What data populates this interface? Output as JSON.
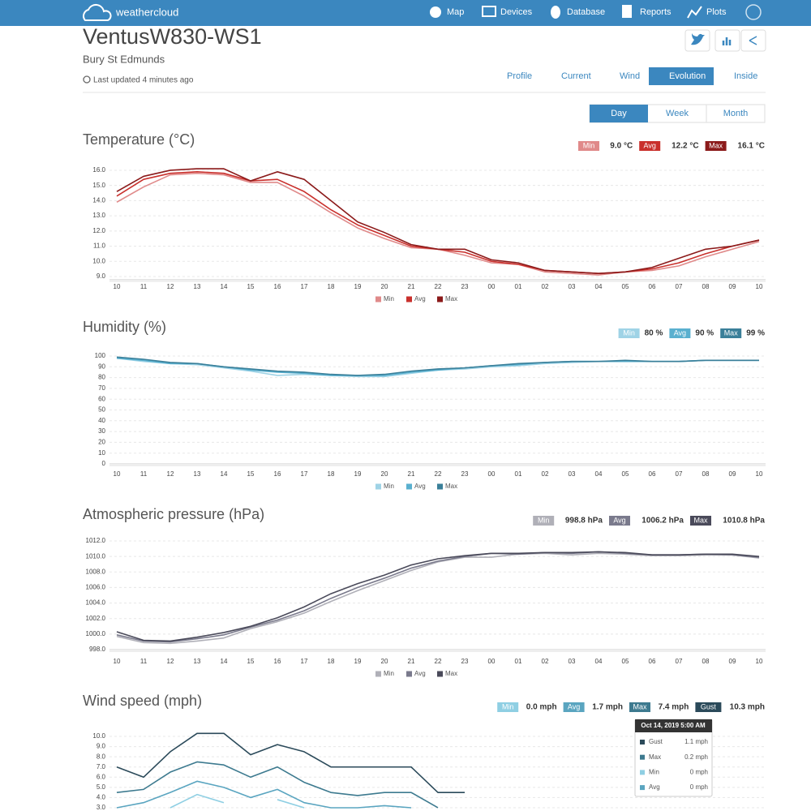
{
  "nav": {
    "brand": "weathercloud",
    "items": [
      "Map",
      "Devices",
      "Database",
      "Reports",
      "Plots"
    ]
  },
  "header": {
    "title": "VentusW830-WS1",
    "location": "Bury St Edmunds",
    "updated": "Last updated 4 minutes ago"
  },
  "tabs": [
    "Profile",
    "Current",
    "Wind",
    "Evolution",
    "Inside"
  ],
  "periods": [
    "Day",
    "Week",
    "Month"
  ],
  "chart_data": [
    {
      "type": "line",
      "title": "Temperature (°C)",
      "legend": true,
      "categories": [
        "10",
        "11",
        "12",
        "13",
        "14",
        "15",
        "16",
        "17",
        "18",
        "19",
        "20",
        "21",
        "22",
        "23",
        "00",
        "01",
        "02",
        "03",
        "04",
        "05",
        "06",
        "07",
        "08",
        "09",
        "10"
      ],
      "series": [
        {
          "name": "Min",
          "color": "#e08a8a",
          "summary": "9.0 °C",
          "values": [
            13.9,
            14.9,
            15.7,
            15.8,
            15.7,
            15.2,
            15.2,
            14.3,
            13.2,
            12.2,
            11.5,
            10.9,
            10.8,
            10.4,
            9.9,
            9.8,
            9.3,
            9.2,
            9.1,
            9.3,
            9.4,
            9.7,
            10.3,
            10.8,
            11.3
          ]
        },
        {
          "name": "Avg",
          "color": "#c9302c",
          "summary": "12.2 °C",
          "values": [
            14.3,
            15.4,
            15.8,
            15.9,
            15.8,
            15.3,
            15.4,
            14.6,
            13.4,
            12.4,
            11.7,
            11.0,
            10.8,
            10.6,
            10.0,
            9.8,
            9.4,
            9.3,
            9.2,
            9.3,
            9.5,
            9.9,
            10.5,
            11.0,
            11.4
          ]
        },
        {
          "name": "Max",
          "color": "#8b1a1a",
          "summary": "16.1 °C",
          "values": [
            14.6,
            15.6,
            16.0,
            16.1,
            16.1,
            15.3,
            15.9,
            15.4,
            14.0,
            12.6,
            11.9,
            11.1,
            10.8,
            10.8,
            10.1,
            9.9,
            9.4,
            9.3,
            9.2,
            9.3,
            9.6,
            10.2,
            10.8,
            11.0,
            11.4
          ]
        }
      ],
      "ylim": [
        8.8,
        16.5
      ],
      "yticks": [
        {
          "value": 9,
          "label": "9.0"
        },
        {
          "value": 10,
          "label": "10.0"
        },
        {
          "value": 11,
          "label": "11.0"
        },
        {
          "value": 12,
          "label": "12.0"
        },
        {
          "value": 13,
          "label": "13.0"
        },
        {
          "value": 14,
          "label": "14.0"
        },
        {
          "value": 15,
          "label": "15.0"
        },
        {
          "value": 16,
          "label": "16.0"
        }
      ]
    },
    {
      "type": "line",
      "title": "Humidity (%)",
      "legend": true,
      "categories": [
        "10",
        "11",
        "12",
        "13",
        "14",
        "15",
        "16",
        "17",
        "18",
        "19",
        "20",
        "21",
        "22",
        "23",
        "00",
        "01",
        "02",
        "03",
        "04",
        "05",
        "06",
        "07",
        "08",
        "09",
        "10"
      ],
      "series": [
        {
          "name": "Min",
          "color": "#9fd3e6",
          "summary": "80 %",
          "values": [
            98,
            95,
            93,
            92,
            89,
            86,
            82,
            83,
            82,
            81,
            81,
            84,
            87,
            88,
            90,
            91,
            93,
            94,
            95,
            95,
            95,
            95,
            96,
            96,
            96
          ]
        },
        {
          "name": "Avg",
          "color": "#5ab0cf",
          "summary": "90 %",
          "values": [
            98,
            96,
            93,
            93,
            90,
            87,
            85,
            84,
            82,
            82,
            82,
            85,
            87,
            89,
            91,
            92,
            94,
            95,
            95,
            95,
            95,
            95,
            96,
            96,
            96
          ]
        },
        {
          "name": "Max",
          "color": "#3a7f99",
          "summary": "99 %",
          "values": [
            99,
            97,
            94,
            93,
            90,
            88,
            86,
            85,
            83,
            82,
            83,
            86,
            88,
            89,
            91,
            93,
            94,
            95,
            95,
            96,
            95,
            95,
            96,
            96,
            96
          ]
        }
      ],
      "ylim": [
        0,
        100
      ],
      "yticks": [
        0,
        10,
        20,
        30,
        40,
        50,
        60,
        70,
        80,
        90,
        100
      ]
    },
    {
      "type": "line",
      "title": "Atmospheric pressure (hPa)",
      "legend": true,
      "categories": [
        "10",
        "11",
        "12",
        "13",
        "14",
        "15",
        "16",
        "17",
        "18",
        "19",
        "20",
        "21",
        "22",
        "23",
        "00",
        "01",
        "02",
        "03",
        "04",
        "05",
        "06",
        "07",
        "08",
        "09",
        "10"
      ],
      "series": [
        {
          "name": "Min",
          "color": "#b0b0b8",
          "summary": "998.8 hPa",
          "values": [
            999.7,
            998.9,
            998.8,
            999.1,
            999.5,
            1000.7,
            1001.6,
            1002.7,
            1004.2,
            1005.6,
            1006.9,
            1008.2,
            1009.3,
            1009.9,
            1009.9,
            1010.3,
            1010.4,
            1010.2,
            1010.4,
            1010.3,
            1010.1,
            1010.1,
            1010.2,
            1010.2,
            1009.8
          ]
        },
        {
          "name": "Avg",
          "color": "#7a7a8c",
          "summary": "1006.2 hPa",
          "values": [
            999.9,
            999.1,
            999.0,
            999.4,
            999.9,
            1000.9,
            1001.8,
            1003.0,
            1004.6,
            1006.0,
            1007.2,
            1008.5,
            1009.4,
            1010.0,
            1010.4,
            1010.3,
            1010.5,
            1010.4,
            1010.6,
            1010.4,
            1010.2,
            1010.2,
            1010.3,
            1010.2,
            1009.9
          ]
        },
        {
          "name": "Max",
          "color": "#4a4a5a",
          "summary": "1010.8 hPa",
          "values": [
            1000.3,
            999.2,
            999.1,
            999.6,
            1000.2,
            1001.0,
            1002.1,
            1003.5,
            1005.2,
            1006.5,
            1007.6,
            1008.9,
            1009.7,
            1010.1,
            1010.4,
            1010.4,
            1010.5,
            1010.5,
            1010.6,
            1010.5,
            1010.2,
            1010.2,
            1010.3,
            1010.3,
            1010.0
          ]
        }
      ],
      "ylim": [
        998,
        1012
      ],
      "yticks": [
        {
          "value": 998,
          "label": "998.0"
        },
        {
          "value": 1000,
          "label": "1000.0"
        },
        {
          "value": 1002,
          "label": "1002.0"
        },
        {
          "value": 1004,
          "label": "1004.0"
        },
        {
          "value": 1006,
          "label": "1006.0"
        },
        {
          "value": 1008,
          "label": "1008.0"
        },
        {
          "value": 1010,
          "label": "1010.0"
        },
        {
          "value": 1012,
          "label": "1012.0"
        }
      ]
    },
    {
      "type": "line",
      "title": "Wind speed (mph)",
      "legend": false,
      "series": [
        {
          "name": "Min",
          "color": "#8fcfe3",
          "summary": "0.0 mph",
          "values": [
            null,
            null,
            3.0,
            4.3,
            3.5,
            null,
            3.8,
            3.0,
            null,
            null,
            null,
            null,
            null,
            null,
            null,
            null,
            null,
            null,
            null,
            null,
            null,
            null,
            null,
            null,
            null
          ]
        },
        {
          "name": "Avg",
          "color": "#5aa5c0",
          "summary": "1.7 mph",
          "values": [
            3.0,
            3.5,
            4.5,
            5.6,
            5.0,
            4.0,
            4.8,
            3.5,
            3.0,
            3.0,
            3.2,
            3.0,
            null,
            null,
            null,
            null,
            null,
            null,
            null,
            null,
            null,
            null,
            null,
            null,
            null
          ]
        },
        {
          "name": "Max",
          "color": "#3d7a8f",
          "summary": "7.4 mph",
          "values": [
            4.5,
            4.8,
            6.5,
            7.5,
            7.2,
            6.0,
            7.0,
            5.5,
            4.5,
            4.2,
            4.5,
            4.5,
            3.0,
            null,
            null,
            null,
            null,
            null,
            null,
            null,
            null,
            null,
            null,
            null,
            null
          ]
        },
        {
          "name": "Gust",
          "color": "#2b4a5a",
          "summary": "10.3 mph",
          "values": [
            7.0,
            6.0,
            8.5,
            10.3,
            10.3,
            8.2,
            9.2,
            8.5,
            7.0,
            7.0,
            7.0,
            7.0,
            4.5,
            4.5,
            null,
            null,
            null,
            null,
            null,
            null,
            null,
            null,
            null,
            null,
            null
          ]
        }
      ],
      "ylim": [
        2.8,
        10.8
      ],
      "yticks": [
        {
          "value": 3,
          "label": "3.0"
        },
        {
          "value": 4,
          "label": "4.0"
        },
        {
          "value": 5,
          "label": "5.0"
        },
        {
          "value": 6,
          "label": "6.0"
        },
        {
          "value": 7,
          "label": "7.0"
        },
        {
          "value": 8,
          "label": "8.0"
        },
        {
          "value": 9,
          "label": "9.0"
        },
        {
          "value": 10,
          "label": "10.0"
        }
      ]
    }
  ],
  "tooltip": {
    "title": "Oct 14, 2019 5:00 AM",
    "rows": [
      {
        "name": "Gust",
        "value": "1.1 mph",
        "color": "#2b4a5a"
      },
      {
        "name": "Max",
        "value": "0.2 mph",
        "color": "#3d7a8f"
      },
      {
        "name": "Min",
        "value": "0 mph",
        "color": "#8fcfe3"
      },
      {
        "name": "Avg",
        "value": "0 mph",
        "color": "#5aa5c0"
      }
    ]
  }
}
